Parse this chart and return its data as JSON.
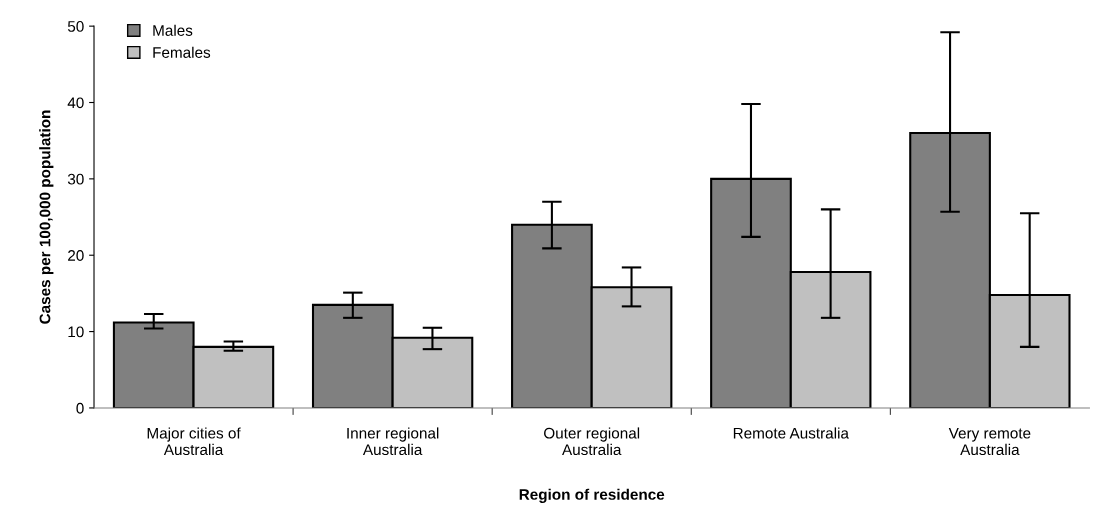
{
  "chart_data": {
    "type": "bar",
    "xlabel": "Region of residence",
    "ylabel": "Cases per 100,000 population",
    "categories": [
      "Major cities of\nAustralia",
      "Inner regional\nAustralia",
      "Outer regional\nAustralia",
      "Remote Australia",
      "Very remote\nAustralia"
    ],
    "series": [
      {
        "name": "Males",
        "color": "#808080",
        "values": [
          11.2,
          13.5,
          24,
          30,
          36
        ],
        "errors": [
          [
            10.4,
            12.3
          ],
          [
            11.8,
            15.1
          ],
          [
            20.9,
            27
          ],
          [
            22.4,
            39.8
          ],
          [
            25.7,
            49.2
          ]
        ]
      },
      {
        "name": "Females",
        "color": "#c0c0c0",
        "values": [
          8,
          9.2,
          15.8,
          17.8,
          14.8
        ],
        "errors": [
          [
            7.5,
            8.7
          ],
          [
            7.7,
            10.5
          ],
          [
            13.3,
            18.4
          ],
          [
            11.8,
            26
          ],
          [
            8,
            25.5
          ]
        ]
      }
    ],
    "ylim": [
      0,
      50
    ],
    "yticks": [
      0,
      10,
      20,
      30,
      40,
      50
    ],
    "grid": false,
    "legend": "top left"
  }
}
